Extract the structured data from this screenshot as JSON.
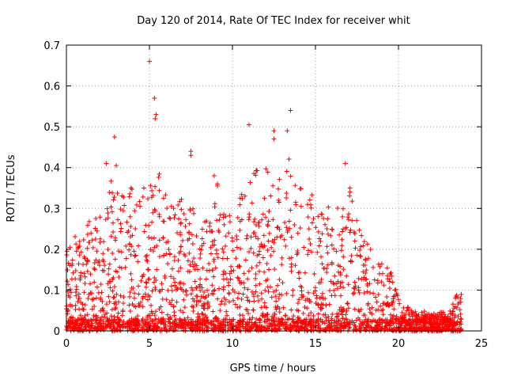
{
  "chart_data": {
    "type": "scatter",
    "title": "Day 120 of 2014, Rate Of TEC Index for receiver whit",
    "xlabel": "GPS time / hours",
    "ylabel": "ROTI / TECUs",
    "xlim": [
      0,
      25
    ],
    "ylim": [
      0,
      0.7
    ],
    "xticks": [
      0,
      5,
      10,
      15,
      20,
      25
    ],
    "yticks": [
      0,
      0.1,
      0.2,
      0.3,
      0.4,
      0.5,
      0.6,
      0.7
    ],
    "grid": true,
    "marker": "+",
    "color": "#ff0000",
    "series": [
      {
        "name": "ROTI",
        "envelope_hours": [
          0,
          0.5,
          1,
          1.5,
          2,
          2.5,
          3,
          3.5,
          4,
          4.5,
          5,
          5.5,
          6,
          6.5,
          7,
          7.5,
          8,
          8.5,
          9,
          9.5,
          10,
          10.5,
          11,
          11.5,
          12,
          12.5,
          13,
          13.5,
          14,
          14.5,
          15,
          15.5,
          16,
          16.5,
          17,
          17.5,
          18,
          18.5,
          19,
          19.5,
          20,
          20.5,
          21,
          21.5,
          22,
          22.5,
          23,
          23.5,
          23.8
        ],
        "envelope_roti": [
          0.2,
          0.26,
          0.22,
          0.3,
          0.28,
          0.4,
          0.35,
          0.33,
          0.37,
          0.34,
          0.38,
          0.43,
          0.33,
          0.3,
          0.35,
          0.33,
          0.22,
          0.3,
          0.35,
          0.29,
          0.3,
          0.35,
          0.4,
          0.4,
          0.4,
          0.38,
          0.4,
          0.43,
          0.38,
          0.33,
          0.36,
          0.3,
          0.32,
          0.3,
          0.37,
          0.28,
          0.22,
          0.2,
          0.18,
          0.15,
          0.08,
          0.06,
          0.05,
          0.05,
          0.04,
          0.05,
          0.04,
          0.1,
          0.1
        ],
        "outliers": [
          {
            "x": 5.0,
            "y": 0.66
          },
          {
            "x": 5.3,
            "y": 0.57
          },
          {
            "x": 5.4,
            "y": 0.53
          },
          {
            "x": 5.35,
            "y": 0.52
          },
          {
            "x": 13.5,
            "y": 0.54
          },
          {
            "x": 11.0,
            "y": 0.505
          },
          {
            "x": 12.5,
            "y": 0.49
          },
          {
            "x": 12.5,
            "y": 0.47
          },
          {
            "x": 13.3,
            "y": 0.49
          },
          {
            "x": 2.9,
            "y": 0.475
          },
          {
            "x": 7.5,
            "y": 0.44
          },
          {
            "x": 7.5,
            "y": 0.43
          },
          {
            "x": 2.4,
            "y": 0.41
          },
          {
            "x": 3.0,
            "y": 0.405
          },
          {
            "x": 16.8,
            "y": 0.41
          },
          {
            "x": 8.9,
            "y": 0.38
          },
          {
            "x": 9.1,
            "y": 0.36
          },
          {
            "x": 9.1,
            "y": 0.355
          }
        ]
      }
    ]
  }
}
